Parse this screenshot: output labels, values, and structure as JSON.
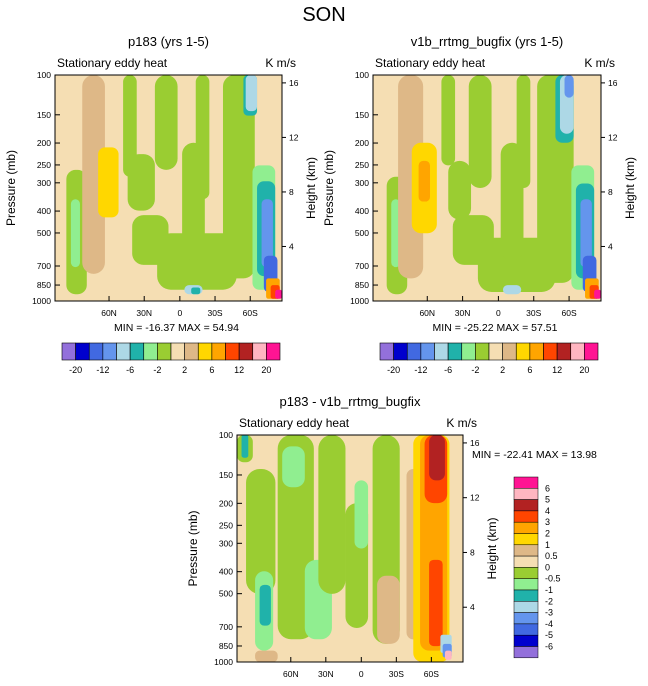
{
  "title": "SON",
  "colors": {
    "panel_levels": [
      "#9370db",
      "#0000cd",
      "#4169e1",
      "#6495ed",
      "#add8e6",
      "#20b2aa",
      "#90ee90",
      "#9acd32",
      "#f5deb3",
      "#deb887",
      "#ffd700",
      "#ffa500",
      "#ff4500",
      "#b22222",
      "#ffb6c1",
      "#ff1493"
    ],
    "diff_levels": [
      "#ff1493",
      "#ffb6c1",
      "#b22222",
      "#ff4500",
      "#ffa500",
      "#ffd700",
      "#deb887",
      "#f5deb3",
      "#9acd32",
      "#90ee90",
      "#20b2aa",
      "#add8e6",
      "#6495ed",
      "#4169e1",
      "#0000cd",
      "#9370db"
    ]
  },
  "chart_data": [
    {
      "type": "heatmap",
      "title": "p183 (yrs 1-5)",
      "subtitle_left": "Stationary eddy heat",
      "units": "K m/s",
      "ylabel": "Pressure (mb)",
      "ylabel_right": "Height (km)",
      "pressure_ticks": [
        "100",
        "150",
        "200",
        "250",
        "300",
        "400",
        "500",
        "700",
        "850",
        "1000"
      ],
      "height_ticks": [
        "16",
        "12",
        "8",
        "4"
      ],
      "lat_ticks": [
        "60N",
        "30N",
        "0",
        "30S",
        "60S"
      ],
      "stats": "MIN = -16.37   MAX =  54.94",
      "min": -16.37,
      "max": 54.94,
      "colorbar_levels": [
        -20,
        -16,
        -12,
        -8,
        -6,
        -4,
        -2,
        -1,
        1,
        2,
        4,
        6,
        8,
        12,
        16,
        20
      ],
      "colorbar_labels": [
        "-20",
        "-12",
        "-6",
        "-2",
        "2",
        "6",
        "12",
        "20"
      ]
    },
    {
      "type": "heatmap",
      "title": "v1b_rrtmg_bugfix (yrs 1-5)",
      "subtitle_left": "Stationary eddy heat",
      "units": "K m/s",
      "ylabel": "Pressure (mb)",
      "ylabel_right": "Height (km)",
      "pressure_ticks": [
        "100",
        "150",
        "200",
        "250",
        "300",
        "400",
        "500",
        "700",
        "850",
        "1000"
      ],
      "height_ticks": [
        "16",
        "12",
        "8",
        "4"
      ],
      "lat_ticks": [
        "60N",
        "30N",
        "0",
        "30S",
        "60S"
      ],
      "stats": "MIN = -25.22   MAX =  57.51",
      "min": -25.22,
      "max": 57.51,
      "colorbar_levels": [
        -20,
        -16,
        -12,
        -8,
        -6,
        -4,
        -2,
        -1,
        1,
        2,
        4,
        6,
        8,
        12,
        16,
        20
      ],
      "colorbar_labels": [
        "-20",
        "-12",
        "-6",
        "-2",
        "2",
        "6",
        "12",
        "20"
      ]
    },
    {
      "type": "heatmap",
      "title": "p183 - v1b_rrtmg_bugfix",
      "subtitle_left": "Stationary eddy heat",
      "units": "K m/s",
      "ylabel": "Pressure (mb)",
      "ylabel_right": "Height (km)",
      "pressure_ticks": [
        "100",
        "150",
        "200",
        "250",
        "300",
        "400",
        "500",
        "700",
        "850",
        "1000"
      ],
      "height_ticks": [
        "16",
        "12",
        "8",
        "4"
      ],
      "lat_ticks": [
        "60N",
        "30N",
        "0",
        "30S",
        "60S"
      ],
      "stats": "MIN = -22.41   MAX =  13.98",
      "min": -22.41,
      "max": 13.98,
      "colorbar_labels": [
        "6",
        "5",
        "4",
        "3",
        "2",
        "1",
        "0.5",
        "0",
        "-0.5",
        "-1",
        "-2",
        "-3",
        "-4",
        "-5",
        "-6"
      ]
    }
  ]
}
